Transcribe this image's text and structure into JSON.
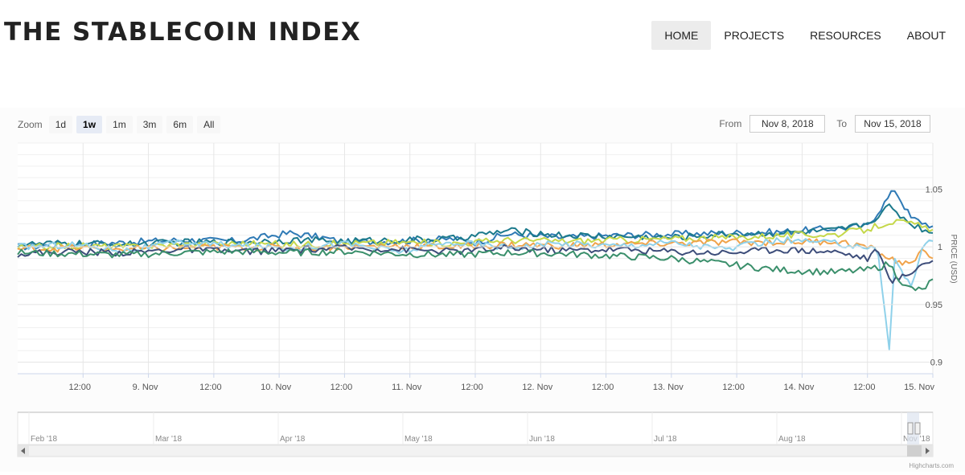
{
  "header": {
    "title": "THE STABLECOIN INDEX",
    "nav": [
      "HOME",
      "PROJECTS",
      "RESOURCES",
      "ABOUT"
    ],
    "active": "HOME"
  },
  "zoom": {
    "label": "Zoom",
    "buttons": [
      "1d",
      "1w",
      "1m",
      "3m",
      "6m",
      "All"
    ],
    "selected": "1w"
  },
  "range": {
    "from_label": "From",
    "from_value": "Nov 8, 2018",
    "to_label": "To",
    "to_value": "Nov 15, 2018"
  },
  "credit": "Highcharts.com",
  "chart_data": {
    "type": "line",
    "title": "",
    "xlabel": "",
    "ylabel": "PRICE (USD)",
    "ylim": [
      0.89,
      1.09
    ],
    "yticks": [
      0.9,
      0.95,
      1,
      1.05
    ],
    "ytick_labels": [
      "0.9",
      "0.95",
      "1",
      "1.05"
    ],
    "xlim": [
      0,
      168
    ],
    "xticks": [
      12,
      24,
      36,
      48,
      60,
      72,
      84,
      96,
      108,
      120,
      132,
      144,
      156,
      168
    ],
    "xtick_labels": [
      "12:00",
      "9. Nov",
      "12:00",
      "10. Nov",
      "12:00",
      "11. Nov",
      "12:00",
      "12. Nov",
      "12:00",
      "13. Nov",
      "12:00",
      "14. Nov",
      "12:00",
      "15. Nov"
    ],
    "grid": true,
    "legend": "none",
    "series": [
      {
        "color": "#2f7ab5",
        "points": [
          [
            0,
            1.0
          ],
          [
            10,
            1.002
          ],
          [
            20,
            1.004
          ],
          [
            30,
            1.006
          ],
          [
            40,
            1.005
          ],
          [
            50,
            1.012
          ],
          [
            56,
            1.008
          ],
          [
            60,
            1.004
          ],
          [
            70,
            1.005
          ],
          [
            80,
            1.007
          ],
          [
            84,
            1.004
          ],
          [
            90,
            1.011
          ],
          [
            100,
            1.008
          ],
          [
            110,
            1.01
          ],
          [
            120,
            1.011
          ],
          [
            130,
            1.012
          ],
          [
            140,
            1.013
          ],
          [
            150,
            1.016
          ],
          [
            156,
            1.018
          ],
          [
            161,
            1.05
          ],
          [
            164,
            1.025
          ],
          [
            168,
            1.018
          ]
        ]
      },
      {
        "color": "#1c7a8c",
        "points": [
          [
            0,
            1.002
          ],
          [
            10,
            1.003
          ],
          [
            20,
            1.002
          ],
          [
            30,
            1.004
          ],
          [
            40,
            1.004
          ],
          [
            50,
            1.006
          ],
          [
            60,
            1.005
          ],
          [
            70,
            1.006
          ],
          [
            80,
            1.007
          ],
          [
            90,
            1.014
          ],
          [
            100,
            1.01
          ],
          [
            110,
            1.009
          ],
          [
            120,
            1.008
          ],
          [
            130,
            1.011
          ],
          [
            140,
            1.012
          ],
          [
            150,
            1.014
          ],
          [
            156,
            1.02
          ],
          [
            160,
            1.035
          ],
          [
            164,
            1.02
          ],
          [
            168,
            1.012
          ]
        ]
      },
      {
        "color": "#c5d84a",
        "points": [
          [
            0,
            0.999
          ],
          [
            10,
            1.001
          ],
          [
            20,
            1.0
          ],
          [
            30,
            1.002
          ],
          [
            40,
            1.003
          ],
          [
            50,
            1.002
          ],
          [
            60,
            1.003
          ],
          [
            70,
            1.004
          ],
          [
            80,
            1.003
          ],
          [
            90,
            1.006
          ],
          [
            100,
            1.005
          ],
          [
            110,
            1.006
          ],
          [
            120,
            1.007
          ],
          [
            130,
            1.008
          ],
          [
            140,
            1.01
          ],
          [
            150,
            1.011
          ],
          [
            156,
            1.015
          ],
          [
            160,
            1.022
          ],
          [
            164,
            1.02
          ],
          [
            168,
            1.015
          ]
        ]
      },
      {
        "color": "#f0a34b",
        "points": [
          [
            0,
            0.998
          ],
          [
            10,
            0.999
          ],
          [
            20,
            0.998
          ],
          [
            30,
            0.999
          ],
          [
            40,
            1.0
          ],
          [
            50,
            0.999
          ],
          [
            60,
            1.0
          ],
          [
            70,
            1.001
          ],
          [
            80,
            1.0
          ],
          [
            90,
            1.002
          ],
          [
            100,
            1.001
          ],
          [
            110,
            1.002
          ],
          [
            120,
            1.003
          ],
          [
            130,
            1.004
          ],
          [
            140,
            1.004
          ],
          [
            150,
            1.005
          ],
          [
            156,
            1.0
          ],
          [
            160,
            0.99
          ],
          [
            163,
            0.985
          ],
          [
            166,
            0.995
          ],
          [
            168,
            0.99
          ]
        ]
      },
      {
        "color": "#8fd1ea",
        "points": [
          [
            0,
            1.0
          ],
          [
            10,
            1.002
          ],
          [
            20,
            0.997
          ],
          [
            30,
            1.004
          ],
          [
            40,
            1.001
          ],
          [
            50,
            0.999
          ],
          [
            60,
            1.003
          ],
          [
            70,
            0.996
          ],
          [
            80,
            1.004
          ],
          [
            90,
            1.0
          ],
          [
            100,
            1.003
          ],
          [
            110,
            1.001
          ],
          [
            120,
            1.004
          ],
          [
            130,
            0.998
          ],
          [
            140,
            1.006
          ],
          [
            150,
            1.003
          ],
          [
            156,
            1.0
          ],
          [
            158,
            0.995
          ],
          [
            160,
            0.91
          ],
          [
            161,
            0.99
          ],
          [
            164,
            0.965
          ],
          [
            166,
            1.0
          ],
          [
            168,
            1.005
          ]
        ]
      },
      {
        "color": "#3d4d7a",
        "points": [
          [
            0,
            0.994
          ],
          [
            10,
            0.996
          ],
          [
            20,
            0.995
          ],
          [
            30,
            0.998
          ],
          [
            40,
            0.996
          ],
          [
            50,
            0.997
          ],
          [
            60,
            0.999
          ],
          [
            70,
            0.998
          ],
          [
            80,
            0.996
          ],
          [
            90,
            0.999
          ],
          [
            100,
            0.997
          ],
          [
            110,
            0.998
          ],
          [
            120,
            0.996
          ],
          [
            130,
            0.995
          ],
          [
            140,
            0.998
          ],
          [
            150,
            0.996
          ],
          [
            156,
            0.99
          ],
          [
            158,
            0.998
          ],
          [
            160,
            0.97
          ],
          [
            163,
            0.975
          ],
          [
            166,
            0.985
          ],
          [
            168,
            0.988
          ]
        ]
      },
      {
        "color": "#3a8f6b",
        "points": [
          [
            0,
            0.995
          ],
          [
            10,
            0.994
          ],
          [
            20,
            0.993
          ],
          [
            30,
            0.995
          ],
          [
            40,
            0.996
          ],
          [
            50,
            0.995
          ],
          [
            60,
            0.996
          ],
          [
            70,
            0.994
          ],
          [
            80,
            0.993
          ],
          [
            90,
            0.995
          ],
          [
            100,
            0.994
          ],
          [
            110,
            0.992
          ],
          [
            120,
            0.99
          ],
          [
            130,
            0.985
          ],
          [
            140,
            0.98
          ],
          [
            150,
            0.978
          ],
          [
            156,
            0.98
          ],
          [
            160,
            0.985
          ],
          [
            163,
            0.965
          ],
          [
            166,
            0.962
          ],
          [
            168,
            0.972
          ]
        ]
      }
    ],
    "navigator": {
      "xtick_labels": [
        "Feb '18",
        "Mar '18",
        "Apr '18",
        "May '18",
        "Jun '18",
        "Jul '18",
        "Aug '18",
        "Nov '18"
      ]
    }
  }
}
